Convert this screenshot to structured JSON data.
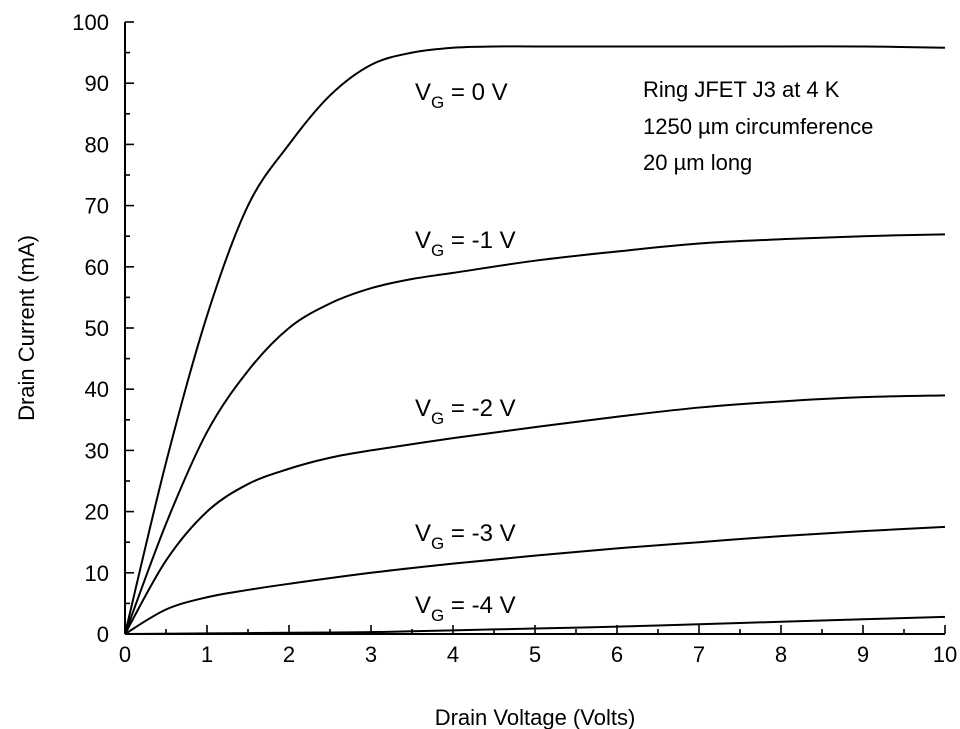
{
  "chart_data": {
    "type": "line",
    "title": "",
    "xlabel": "Drain Voltage (Volts)",
    "ylabel": "Drain Current (mA)",
    "xlim": [
      0,
      10
    ],
    "ylim": [
      0,
      100
    ],
    "x_ticks": [
      "0",
      "1",
      "2",
      "3",
      "4",
      "5",
      "6",
      "7",
      "8",
      "9",
      "10"
    ],
    "y_ticks": [
      "0",
      "10",
      "20",
      "30",
      "40",
      "50",
      "60",
      "70",
      "80",
      "90",
      "100"
    ],
    "grid": false,
    "annotations": [
      "Ring JFET J3 at 4 K",
      "1250 µm circumference",
      "20 µm long"
    ],
    "series": [
      {
        "label_main": "V",
        "label_sub": "G",
        "label_value": " =  0 V",
        "x": [
          0,
          0.5,
          1,
          1.5,
          2,
          2.5,
          3,
          3.5,
          4,
          4.5,
          5,
          6,
          7,
          8,
          9,
          10
        ],
        "y": [
          0,
          28,
          52,
          70,
          80,
          88,
          93,
          95,
          95.8,
          96,
          96,
          96,
          96,
          96,
          96,
          95.8
        ]
      },
      {
        "label_main": "V",
        "label_sub": "G",
        "label_value": " = -1 V",
        "x": [
          0,
          0.5,
          1,
          1.5,
          2,
          2.5,
          3,
          3.5,
          4,
          5,
          6,
          7,
          8,
          9,
          10
        ],
        "y": [
          0,
          18,
          33,
          43,
          50,
          54,
          56.5,
          58,
          59,
          61,
          62.5,
          63.8,
          64.5,
          65,
          65.3
        ]
      },
      {
        "label_main": "V",
        "label_sub": "G",
        "label_value": " = -2 V",
        "x": [
          0,
          0.5,
          1,
          1.5,
          2,
          2.5,
          3,
          4,
          5,
          6,
          7,
          8,
          9,
          10
        ],
        "y": [
          0,
          12,
          20,
          24.5,
          27,
          28.8,
          30,
          32,
          33.8,
          35.5,
          37,
          38,
          38.7,
          39
        ]
      },
      {
        "label_main": "V",
        "label_sub": "G",
        "label_value": " = -3 V",
        "x": [
          0,
          0.5,
          1,
          1.5,
          2,
          3,
          4,
          5,
          6,
          7,
          8,
          9,
          10
        ],
        "y": [
          0,
          4,
          6,
          7.2,
          8.2,
          10,
          11.5,
          12.8,
          14,
          15,
          16,
          16.8,
          17.5
        ]
      },
      {
        "label_main": "V",
        "label_sub": "G",
        "label_value": " = -4 V",
        "x": [
          0,
          1,
          2,
          3,
          4,
          5,
          6,
          7,
          8,
          9,
          10
        ],
        "y": [
          0,
          0.1,
          0.2,
          0.3,
          0.6,
          0.9,
          1.2,
          1.6,
          2,
          2.4,
          2.8
        ]
      }
    ]
  }
}
